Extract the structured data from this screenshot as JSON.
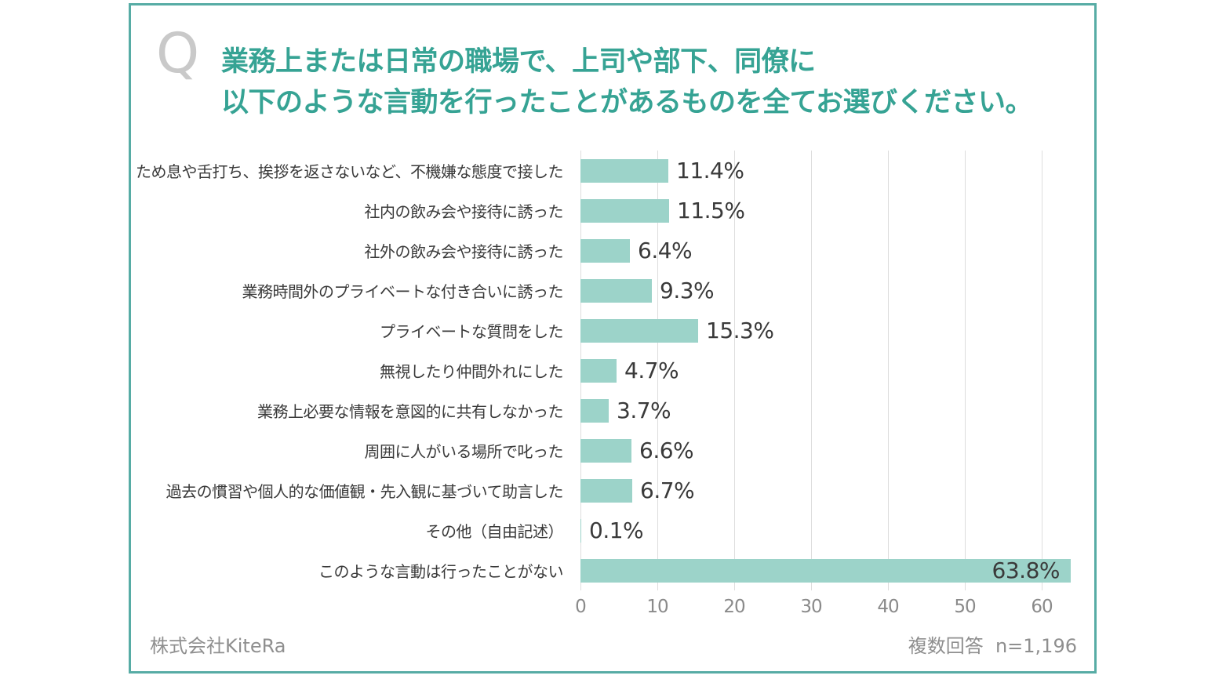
{
  "question": {
    "q_mark": "Q",
    "title_lines": [
      "業務上または日常の職場で、上司や部下、同僚に",
      "以下のような言動を行ったことがあるものを全てお選びください。"
    ]
  },
  "footer": {
    "left": "株式会社KiteRa",
    "right": "複数回答  n=1,196"
  },
  "colors": {
    "card_border_teal": "#57ACA5",
    "title_teal": "#36A394",
    "bar_fill": "#9CD3C9",
    "gridline": "#DDDDDD",
    "text_dark": "#3A3A3A",
    "tick_gray": "#8A8A8A",
    "footer_gray": "#8F8F8F",
    "q_mark_gray": "#C9C9C9"
  },
  "chart_data": {
    "type": "bar",
    "orientation": "horizontal",
    "title": "業務上または日常の職場で、上司や部下、同僚に以下のような言動を行ったことがあるものを全てお選びください。",
    "categories": [
      "ため息や舌打ち、挨拶を返さないなど、不機嫌な態度で接した",
      "社内の飲み会や接待に誘った",
      "社外の飲み会や接待に誘った",
      "業務時間外のプライベートな付き合いに誘った",
      "プライベートな質問をした",
      "無視したり仲間外れにした",
      "業務上必要な情報を意図的に共有しなかった",
      "周囲に人がいる場所で叱った",
      "過去の慣習や個人的な価値観・先入観に基づいて助言した",
      "その他（自由記述）",
      "このような言動は行ったことがない"
    ],
    "values": [
      11.4,
      11.5,
      6.4,
      9.3,
      15.3,
      4.7,
      3.7,
      6.6,
      6.7,
      0.1,
      63.8
    ],
    "value_labels": [
      "11.4%",
      "11.5%",
      "6.4%",
      "9.3%",
      "15.3%",
      "4.7%",
      "3.7%",
      "6.6%",
      "6.7%",
      "0.1%",
      "63.8%"
    ],
    "x_ticks": [
      "0",
      "10",
      "20",
      "30",
      "40",
      "50",
      "60"
    ],
    "xlim": [
      0,
      64
    ],
    "xlabel": "",
    "ylabel": "",
    "grid": "vertical",
    "legend": "none",
    "annotation": "複数回答  n=1,196"
  }
}
